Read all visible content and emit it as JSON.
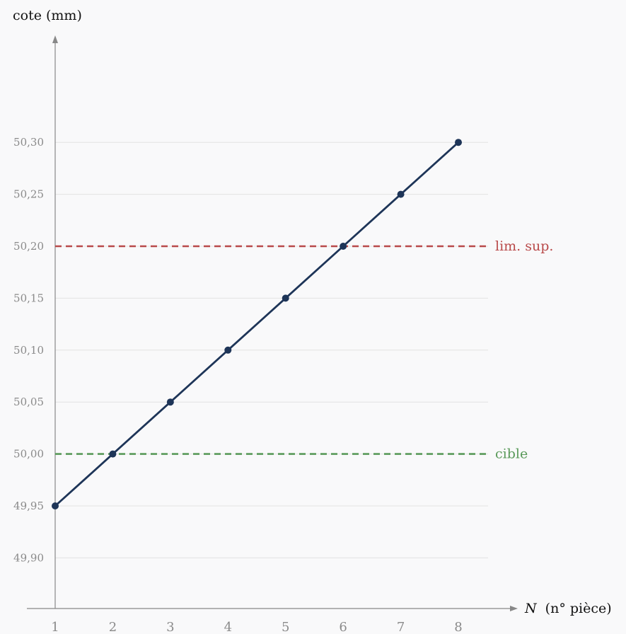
{
  "chart_data": {
    "type": "line",
    "ylabel": "cote (mm)",
    "xlabel": {
      "var": "N",
      "rest": "(n° pièce)"
    },
    "x": [
      1,
      2,
      3,
      4,
      5,
      6,
      7,
      8
    ],
    "series": [
      {
        "values": [
          49.95,
          50.0,
          50.05,
          50.1,
          50.15,
          50.2,
          50.25,
          50.3
        ],
        "color": "#1e3558"
      }
    ],
    "reference_lines": [
      {
        "label": "lim. sup.",
        "value": 50.2,
        "color": "#b94a4a",
        "style": "dashed"
      },
      {
        "label": "cible",
        "value": 50.0,
        "color": "#5a9a5a",
        "style": "dashed"
      }
    ],
    "x_ticks": [
      "1",
      "2",
      "3",
      "4",
      "5",
      "6",
      "7",
      "8"
    ],
    "y_ticks": [
      {
        "value": 49.9,
        "label": "49,90"
      },
      {
        "value": 49.95,
        "label": "49,95"
      },
      {
        "value": 50.0,
        "label": "50,00"
      },
      {
        "value": 50.05,
        "label": "50,05"
      },
      {
        "value": 50.1,
        "label": "50,10"
      },
      {
        "value": 50.15,
        "label": "50,15"
      },
      {
        "value": 50.2,
        "label": "50,20"
      },
      {
        "value": 50.25,
        "label": "50,25"
      },
      {
        "value": 50.3,
        "label": "50,30"
      }
    ],
    "grid": true,
    "colors": {
      "axis": "#888888",
      "grid": "#e2e2e2",
      "tick_text": "#8a8a8a"
    }
  }
}
